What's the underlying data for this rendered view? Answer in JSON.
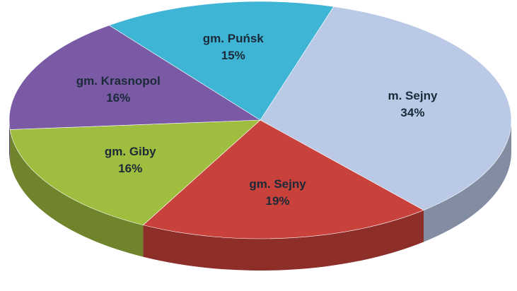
{
  "chart_data": {
    "type": "pie",
    "categories": [
      "m. Sejny",
      "gm. Sejny",
      "gm. Giby",
      "gm. Krasnopol",
      "gm. Puńsk"
    ],
    "values": [
      34,
      19,
      16,
      16,
      15
    ],
    "value_labels": [
      "34%",
      "19%",
      "16%",
      "16%",
      "15%"
    ],
    "colors": [
      "#b9c9e6",
      "#c9413b",
      "#9fbd3e",
      "#7a5aa5",
      "#3fb5d6"
    ]
  }
}
